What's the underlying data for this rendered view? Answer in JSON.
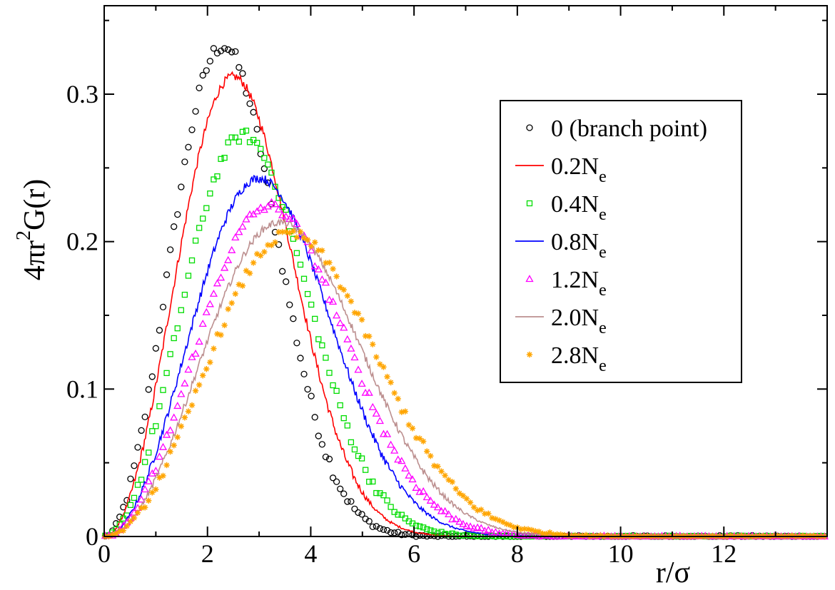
{
  "chart_data": {
    "type": "scatter",
    "title": "",
    "xlabel": "r/σ",
    "ylabel_parts": [
      "4πr",
      "2",
      "G(r)"
    ],
    "xlim": [
      0,
      14
    ],
    "ylim": [
      0,
      0.36
    ],
    "x_ticks": [
      0,
      2,
      4,
      6,
      8,
      10,
      12
    ],
    "x_tick_labels": [
      "0",
      "2",
      "4",
      "6",
      "8",
      "10",
      "12"
    ],
    "y_ticks": [
      0,
      0.1,
      0.2,
      0.3
    ],
    "y_tick_labels": [
      "0",
      "0.1",
      "0.2",
      "0.3"
    ],
    "legend_position": "top-right",
    "series": [
      {
        "name": "0 (branch point)",
        "label": "0 (branch point)",
        "sub": "",
        "style": "circle",
        "color": "#000000",
        "peak_x": 2.3,
        "peak_y": 0.333,
        "sigma": 1.7,
        "noise": 0.01
      },
      {
        "name": "0.2N_e",
        "label": "0.2N",
        "sub": "e",
        "style": "line",
        "color": "#ff0000",
        "peak_x": 2.5,
        "peak_y": 0.312,
        "sigma": 1.9,
        "noise": 0.006
      },
      {
        "name": "0.4N_e",
        "label": "0.4N",
        "sub": "e",
        "style": "square",
        "color": "#00dd00",
        "peak_x": 2.7,
        "peak_y": 0.272,
        "sigma": 2.2,
        "noise": 0.008
      },
      {
        "name": "0.8N_e",
        "label": "0.8N",
        "sub": "e",
        "style": "line",
        "color": "#0000ff",
        "peak_x": 3.0,
        "peak_y": 0.243,
        "sigma": 2.5,
        "noise": 0.006
      },
      {
        "name": "1.2N_e",
        "label": "1.2N",
        "sub": "e",
        "style": "triangle",
        "color": "#ff00ff",
        "peak_x": 3.2,
        "peak_y": 0.224,
        "sigma": 2.75,
        "noise": 0.007
      },
      {
        "name": "2.0N_e",
        "label": "2.0N",
        "sub": "e",
        "style": "line",
        "color": "#bc8f8f",
        "peak_x": 3.4,
        "peak_y": 0.213,
        "sigma": 2.95,
        "noise": 0.005
      },
      {
        "name": "2.8N_e",
        "label": "2.8N",
        "sub": "e",
        "style": "star",
        "color": "#ffa500",
        "peak_x": 3.6,
        "peak_y": 0.205,
        "sigma": 3.1,
        "noise": 0.007
      }
    ]
  }
}
